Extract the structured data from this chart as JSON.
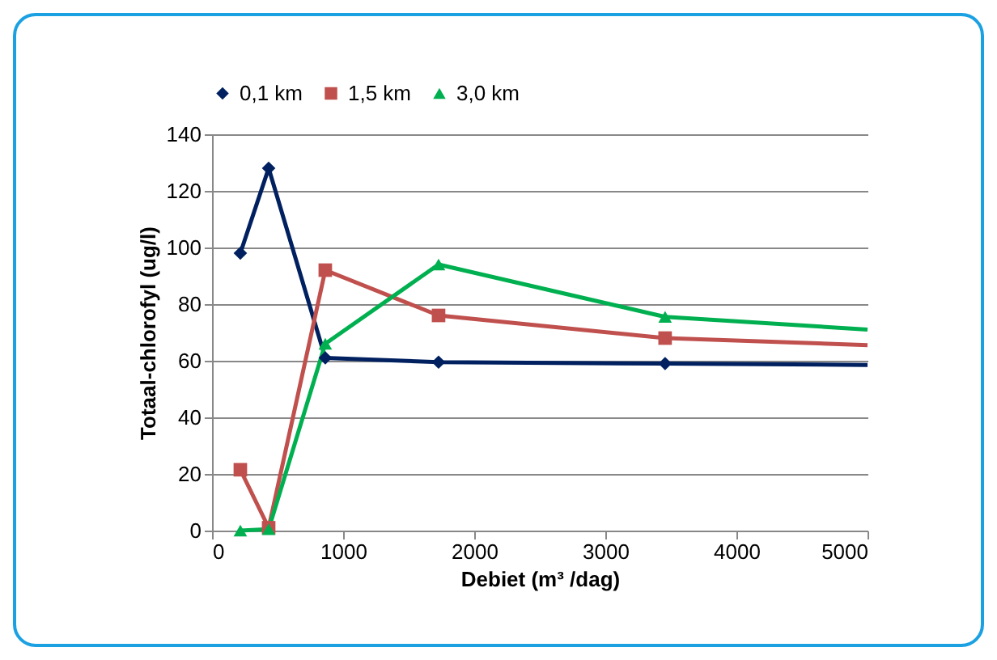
{
  "chart_data": {
    "type": "line",
    "xlabel": "Debiet (m³ /dag)",
    "ylabel": "Totaal-chlorofyl (ug/l)",
    "xlim": [
      0,
      5000
    ],
    "xticks": [
      0,
      1000,
      2000,
      3000,
      4000,
      5000
    ],
    "ylim": [
      0,
      140
    ],
    "yticks": [
      0,
      20,
      40,
      60,
      80,
      100,
      120,
      140
    ],
    "grid": "y",
    "legend": "top",
    "marker": "circle",
    "series": [
      {
        "name": "0,1 km",
        "color": "#002060",
        "marker": "diamond",
        "x": [
          216,
          432,
          864,
          1728,
          3456,
          5000
        ],
        "values": [
          98,
          128,
          61,
          59.5,
          59,
          58.5
        ]
      },
      {
        "name": "1,5 km",
        "color": "#c0504d",
        "marker": "square",
        "x": [
          216,
          432,
          864,
          1728,
          3456,
          5000
        ],
        "values": [
          21.5,
          1,
          92,
          76,
          68,
          65.5
        ]
      },
      {
        "name": "3,0 km",
        "color": "#00b050",
        "marker": "triangle",
        "x": [
          216,
          432,
          864,
          1728,
          3456,
          5000
        ],
        "values": [
          0,
          0.5,
          66,
          94,
          75.5,
          71
        ]
      }
    ]
  }
}
